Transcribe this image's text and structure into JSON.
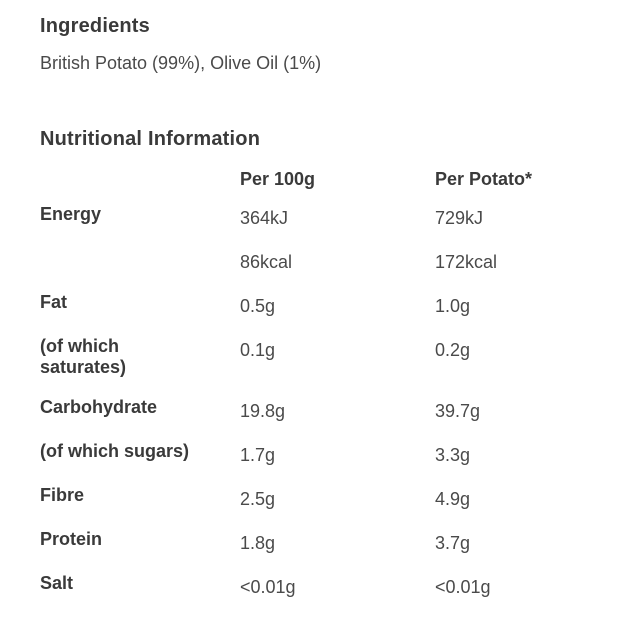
{
  "colors": {
    "background": "#ffffff",
    "heading_text": "#3a3a3a",
    "body_text": "#4a4a4a"
  },
  "ingredients": {
    "heading": "Ingredients",
    "text": "British Potato (99%), Olive Oil (1%)"
  },
  "nutrition": {
    "heading": "Nutritional Information",
    "columns": [
      "Per 100g",
      "Per Potato*"
    ],
    "rows": [
      {
        "label": "Energy",
        "per100g": "364kJ",
        "perPotato": "729kJ"
      },
      {
        "label": "",
        "per100g": "86kcal",
        "perPotato": "172kcal"
      },
      {
        "label": "Fat",
        "per100g": "0.5g",
        "perPotato": "1.0g"
      },
      {
        "label": "(of which saturates)",
        "per100g": "0.1g",
        "perPotato": "0.2g"
      },
      {
        "label": "Carbohydrate",
        "per100g": "19.8g",
        "perPotato": "39.7g"
      },
      {
        "label": "(of which sugars)",
        "per100g": "1.7g",
        "perPotato": "3.3g"
      },
      {
        "label": "Fibre",
        "per100g": "2.5g",
        "perPotato": "4.9g"
      },
      {
        "label": "Protein",
        "per100g": "1.8g",
        "perPotato": "3.7g"
      },
      {
        "label": "Salt",
        "per100g": "<0.01g",
        "perPotato": "<0.01g"
      }
    ]
  }
}
